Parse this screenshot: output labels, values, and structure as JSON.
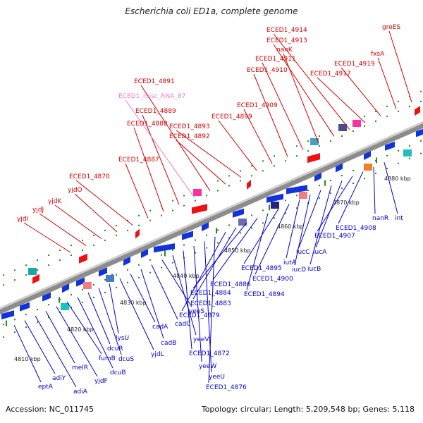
{
  "title": "Escherichia coli ED1a, complete genome",
  "footer": {
    "accession": "Accession: NC_011745",
    "stats": "Topology: circular; Length: 5,209,548 bp; Genes: 5,118"
  },
  "colors": {
    "top_label": "#d40000",
    "bottom_label": "#0000cc",
    "misc_rna_label": "#e87fd0",
    "backbone": "#8c8c8c",
    "tick": "#228b22",
    "forward_gene": "#ee1111",
    "reverse_gene": "#1133dd"
  },
  "ticks": [
    "4810 kbp",
    "4820 kbp",
    "4830 kbp",
    "4840 kbp",
    "4850 kbp",
    "4860 kbp",
    "4870 kbp",
    "4880 kbp"
  ],
  "top_labels": [
    "yjdI",
    "yjdJ",
    "yjdK",
    "yjdO",
    "ECED1_4870",
    "ECED1_4887",
    "ECED1_4888",
    "ECED1_4889",
    "ECED1_misc_RNA_87",
    "ECED1_4891",
    "ECED1_4892",
    "ECED1_4893",
    "ECED1_4899",
    "ECED1_4909",
    "ECED1_4910",
    "ECED1_4911",
    "nanK",
    "ECED1_4913",
    "ECED1_4914",
    "ECED1_4917",
    "ECED1_4919",
    "fxsA",
    "groES"
  ],
  "bottom_labels": [
    "eptA",
    "adiY",
    "adiA",
    "melR",
    "yjdF",
    "fumB",
    "dcuB",
    "dcuR",
    "dcuS",
    "lysU",
    "yjdL",
    "cadA",
    "cadB",
    "cadC",
    "yeeS",
    "yeeV",
    "ECED1_4872",
    "yeeW",
    "yeeU",
    "ECED1_4876",
    "ECED1_4879",
    "ECED1_4883",
    "ECED1_4884",
    "ECED1_4886",
    "ECED1_4894",
    "ECED1_4895",
    "ECED1_4900",
    "iutA",
    "iucD",
    "iucC",
    "iucB",
    "iucA",
    "ECED1_4907",
    "ECED1_4908",
    "nanR",
    "int"
  ]
}
